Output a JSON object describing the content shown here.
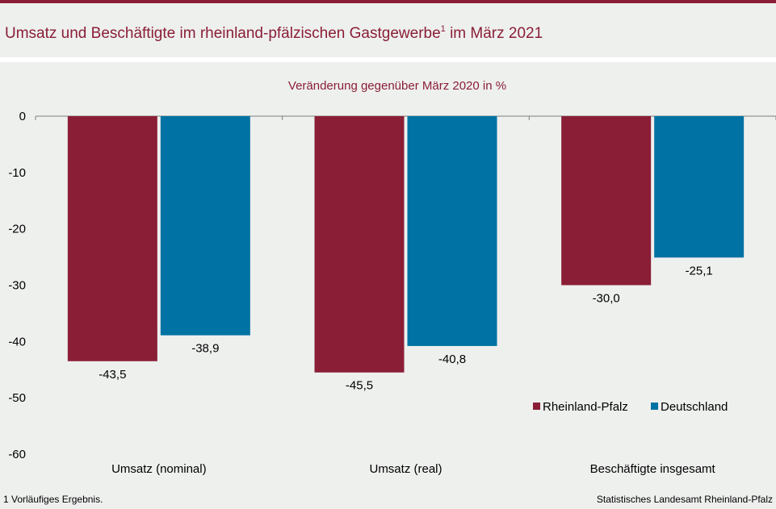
{
  "header": {
    "title": "Umsatz und Beschäftigte im rheinland-pfälzischen Gastgewerbe",
    "title_sup": "1",
    "title_suffix": " im März 2021"
  },
  "footer": {
    "footnote": "1 Vorläufiges  Ergebnis.",
    "source": "Statistisches Landesamt Rheinland-Pfalz"
  },
  "colors": {
    "accent": "#8a1e36",
    "rheinland_pfalz": "#8a1e36",
    "deutschland": "#0072a3",
    "background": "#eef0ee"
  },
  "chart_data": {
    "type": "bar",
    "subtitle": "Veränderung  gegenüber  März 2020 in %",
    "categories": [
      "Umsatz (nominal)",
      "Umsatz (real)",
      "Beschäftigte insgesamt"
    ],
    "series": [
      {
        "name": "Rheinland-Pfalz",
        "color": "#8a1e36",
        "values": [
          -43.5,
          -45.5,
          -30.0
        ],
        "labels": [
          "-43,5",
          "-45,5",
          "-30,0"
        ]
      },
      {
        "name": "Deutschland",
        "color": "#0072a3",
        "values": [
          -38.9,
          -40.8,
          -25.1
        ],
        "labels": [
          "-38,9",
          "-40,8",
          "-25,1"
        ]
      }
    ],
    "yticks": [
      0,
      -10,
      -20,
      -30,
      -40,
      -50,
      -60
    ],
    "ylim": [
      -60,
      0
    ],
    "legend_position": "bottom-right",
    "grid": false
  }
}
